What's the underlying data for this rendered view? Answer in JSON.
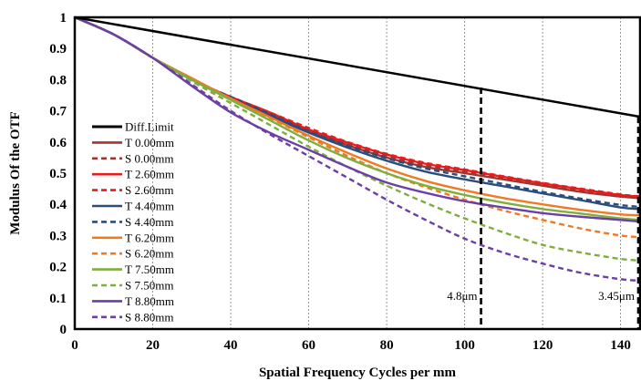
{
  "chart_data": {
    "type": "line",
    "title": "",
    "xlabel": "Spatial Frequency Cycles per mm",
    "ylabel": "Modulus Of  the OTF",
    "xlim": [
      0,
      145
    ],
    "ylim": [
      0,
      1
    ],
    "xticks": [
      0,
      20,
      40,
      60,
      80,
      100,
      120,
      140
    ],
    "yticks": [
      0,
      0.1,
      0.2,
      0.3,
      0.4,
      0.5,
      0.6,
      0.7,
      0.8,
      0.9,
      1
    ],
    "tick_labels_x": [
      "0",
      "20",
      "40",
      "60",
      "80",
      "100",
      "120",
      "140"
    ],
    "tick_labels_y": [
      "0",
      "0.1",
      "0.2",
      "0.3",
      "0.4",
      "0.5",
      "0.6",
      "0.7",
      "0.8",
      "0.9",
      "1"
    ],
    "grid": "vertical",
    "legend_position": "left-bottom",
    "x": [
      0,
      10,
      20,
      30,
      40,
      50,
      60,
      70,
      80,
      90,
      100,
      110,
      120,
      130,
      140,
      145
    ],
    "series": [
      {
        "name": "Diff.Limit",
        "color": "#000000",
        "dash": false,
        "values": [
          1.0,
          0.978,
          0.956,
          0.934,
          0.912,
          0.89,
          0.868,
          0.846,
          0.824,
          0.802,
          0.78,
          0.758,
          0.736,
          0.714,
          0.692,
          0.681
        ]
      },
      {
        "name": "T 0.00mm",
        "color": "#a0352e",
        "dash": false,
        "values": [
          1.0,
          0.945,
          0.87,
          0.8,
          0.74,
          0.69,
          0.635,
          0.59,
          0.55,
          0.52,
          0.5,
          0.48,
          0.46,
          0.44,
          0.425,
          0.42
        ]
      },
      {
        "name": "S 0.00mm",
        "color": "#a0352e",
        "dash": true,
        "values": [
          1.0,
          0.945,
          0.87,
          0.8,
          0.74,
          0.69,
          0.64,
          0.595,
          0.555,
          0.525,
          0.505,
          0.485,
          0.465,
          0.445,
          0.43,
          0.425
        ]
      },
      {
        "name": "T 2.60mm",
        "color": "#e81c1c",
        "dash": false,
        "values": [
          1.0,
          0.945,
          0.87,
          0.8,
          0.745,
          0.695,
          0.64,
          0.598,
          0.56,
          0.53,
          0.51,
          0.488,
          0.467,
          0.448,
          0.43,
          0.425
        ]
      },
      {
        "name": "S 2.60mm",
        "color": "#e81c1c",
        "dash": true,
        "values": [
          1.0,
          0.945,
          0.87,
          0.8,
          0.745,
          0.695,
          0.645,
          0.6,
          0.562,
          0.533,
          0.512,
          0.49,
          0.469,
          0.45,
          0.432,
          0.425
        ]
      },
      {
        "name": "T 4.40mm",
        "color": "#2a4d7e",
        "dash": false,
        "values": [
          1.0,
          0.945,
          0.87,
          0.8,
          0.74,
          0.685,
          0.63,
          0.582,
          0.54,
          0.505,
          0.48,
          0.458,
          0.435,
          0.413,
          0.39,
          0.385
        ]
      },
      {
        "name": "S 4.40mm",
        "color": "#2a4d7e",
        "dash": true,
        "values": [
          1.0,
          0.945,
          0.87,
          0.8,
          0.745,
          0.69,
          0.635,
          0.588,
          0.548,
          0.515,
          0.49,
          0.465,
          0.44,
          0.418,
          0.398,
          0.392
        ]
      },
      {
        "name": "T 6.20mm",
        "color": "#f07a22",
        "dash": false,
        "values": [
          1.0,
          0.945,
          0.87,
          0.805,
          0.74,
          0.68,
          0.62,
          0.565,
          0.515,
          0.475,
          0.445,
          0.42,
          0.4,
          0.382,
          0.368,
          0.365
        ]
      },
      {
        "name": "S 6.20mm",
        "color": "#f07a22",
        "dash": true,
        "values": [
          1.0,
          0.945,
          0.87,
          0.8,
          0.74,
          0.678,
          0.615,
          0.555,
          0.5,
          0.455,
          0.415,
          0.38,
          0.35,
          0.322,
          0.3,
          0.295
        ]
      },
      {
        "name": "T 7.50mm",
        "color": "#7fae3f",
        "dash": false,
        "values": [
          1.0,
          0.945,
          0.87,
          0.8,
          0.735,
          0.67,
          0.605,
          0.548,
          0.5,
          0.46,
          0.43,
          0.405,
          0.385,
          0.37,
          0.355,
          0.35
        ]
      },
      {
        "name": "S 7.50mm",
        "color": "#7fae3f",
        "dash": true,
        "values": [
          1.0,
          0.945,
          0.87,
          0.795,
          0.725,
          0.655,
          0.585,
          0.52,
          0.46,
          0.405,
          0.355,
          0.31,
          0.27,
          0.245,
          0.225,
          0.22
        ]
      },
      {
        "name": "T 8.80mm",
        "color": "#6c3fa6",
        "dash": false,
        "values": [
          1.0,
          0.945,
          0.87,
          0.78,
          0.695,
          0.63,
          0.575,
          0.52,
          0.47,
          0.437,
          0.41,
          0.39,
          0.372,
          0.36,
          0.35,
          0.345
        ]
      },
      {
        "name": "S 8.80mm",
        "color": "#6c3fa6",
        "dash": true,
        "values": [
          1.0,
          0.945,
          0.87,
          0.785,
          0.7,
          0.625,
          0.555,
          0.485,
          0.415,
          0.35,
          0.29,
          0.245,
          0.21,
          0.18,
          0.16,
          0.155
        ]
      }
    ],
    "markers": [
      {
        "label": "4.8μm",
        "x": 104.2,
        "y_top": 0.775,
        "label_y": 0.07
      },
      {
        "label": "3.45μm",
        "x": 144.9,
        "y_top": 0.681,
        "label_y": 0.07
      }
    ]
  }
}
